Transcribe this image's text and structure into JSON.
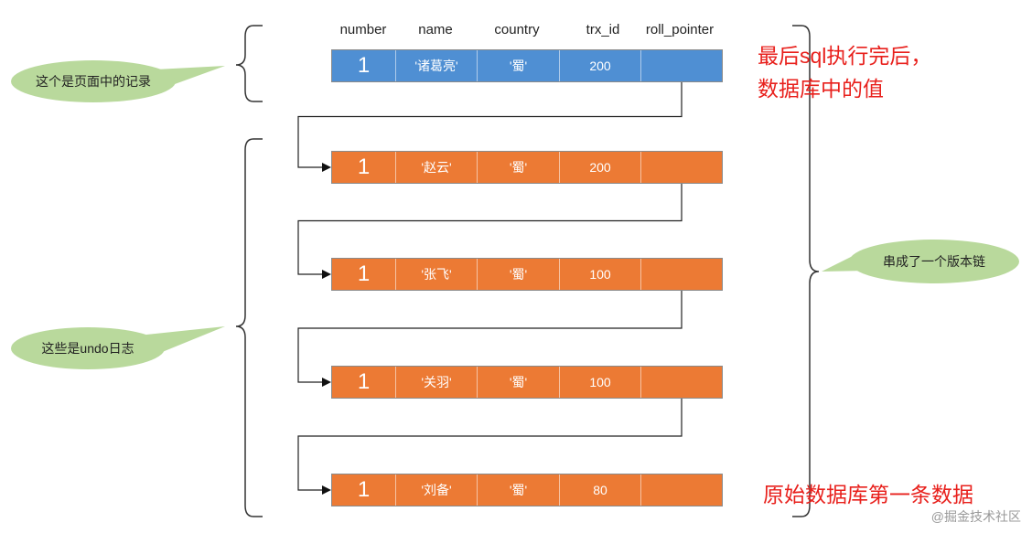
{
  "headers": [
    "number",
    "name",
    "country",
    "trx_id",
    "roll_pointer"
  ],
  "records": [
    {
      "number": "1",
      "name": "'诸葛亮'",
      "country": "'蜀'",
      "trx_id": "200",
      "color": "#4f8fd3"
    },
    {
      "number": "1",
      "name": "'赵云'",
      "country": "'蜀'",
      "trx_id": "200",
      "color": "#ec7a34"
    },
    {
      "number": "1",
      "name": "'张飞'",
      "country": "'蜀'",
      "trx_id": "100",
      "color": "#ec7a34"
    },
    {
      "number": "1",
      "name": "'关羽'",
      "country": "'蜀'",
      "trx_id": "100",
      "color": "#ec7a34"
    },
    {
      "number": "1",
      "name": "'刘备'",
      "country": "'蜀'",
      "trx_id": "80",
      "color": "#ec7a34"
    }
  ],
  "bubbles": {
    "page_record": "这个是页面中的记录",
    "undo_log": "这些是undo日志",
    "version_chain": "串成了一个版本链"
  },
  "notes": {
    "top_line1": "最后sql执行完后，",
    "top_line2": "数据库中的值",
    "bottom": "原始数据库第一条数据"
  },
  "watermark": "@掘金技术社区",
  "colors": {
    "current": "#4f8fd3",
    "undo": "#ec7a34",
    "bubble": "#b9d99c",
    "note": "#e8201c"
  }
}
